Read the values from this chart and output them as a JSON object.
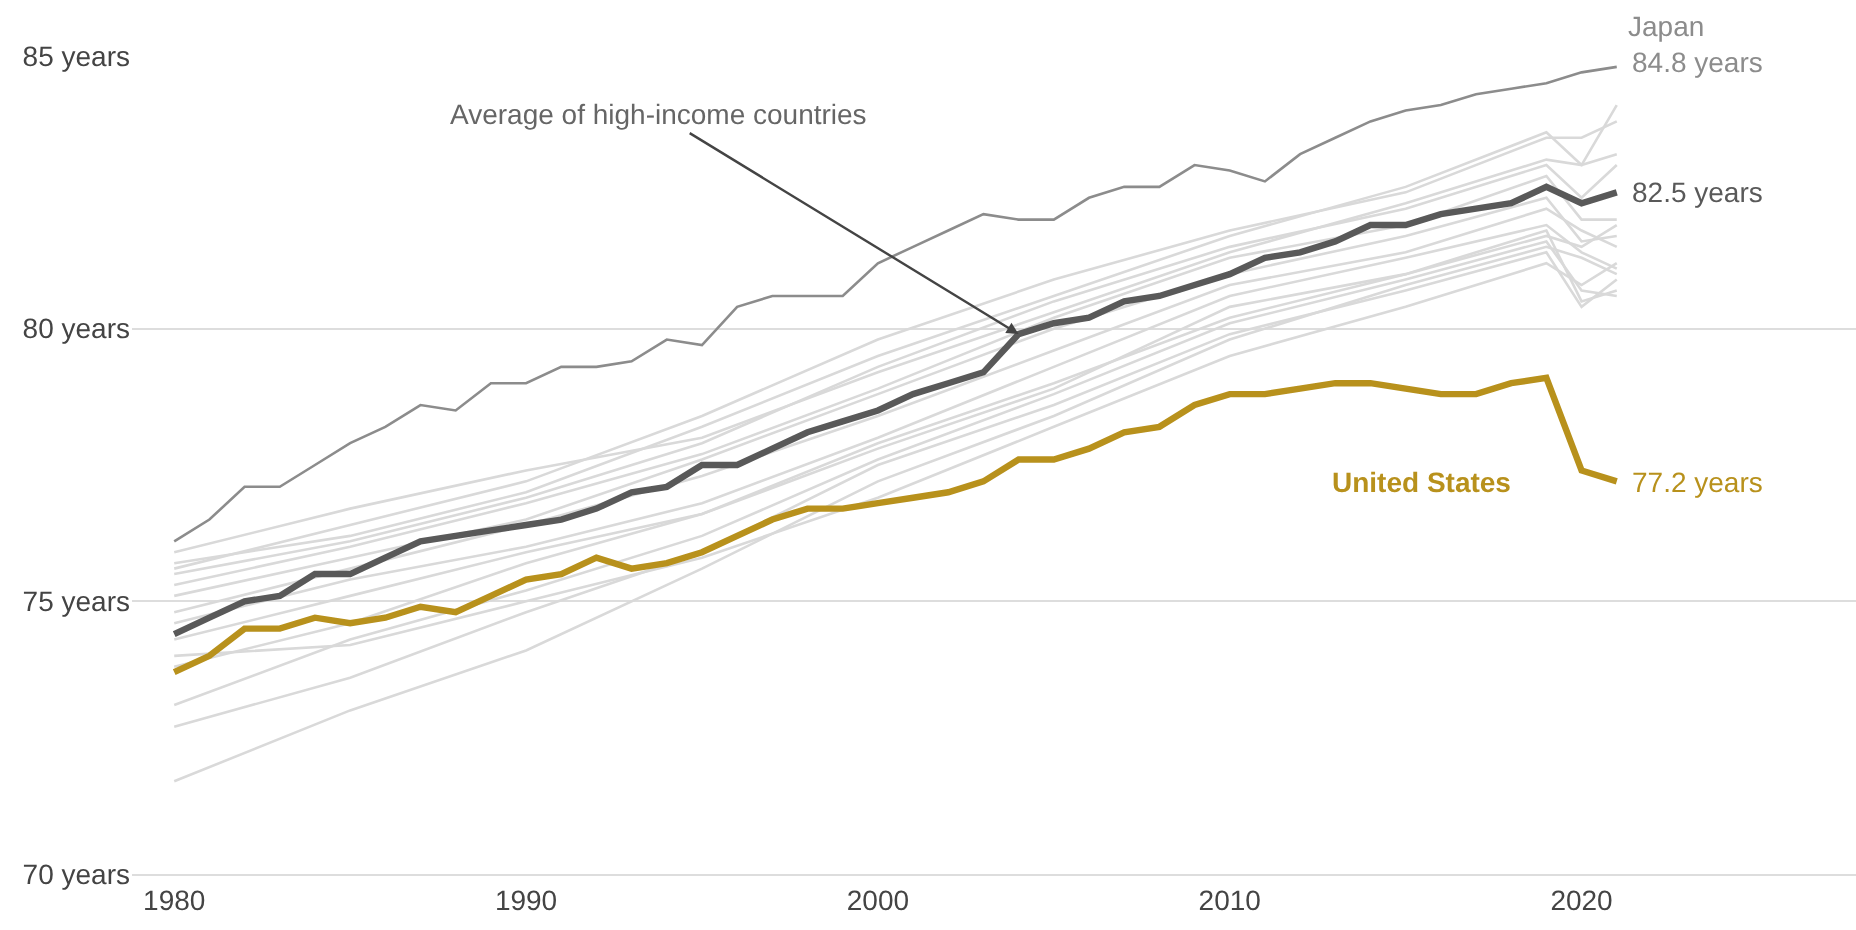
{
  "chart_data": {
    "type": "line",
    "annotations": [
      {
        "text": "Average of high-income countries",
        "x": 2004,
        "y": 79.9
      }
    ],
    "xlim": [
      1978.8,
      2027.8
    ],
    "xticks": [
      1980,
      1990,
      2000,
      2010,
      2020
    ],
    "ylim": [
      70,
      85
    ],
    "yticks": [
      {
        "value": 70,
        "label": "70 years"
      },
      {
        "value": 75,
        "label": "75 years"
      },
      {
        "value": 80,
        "label": "80 years"
      },
      {
        "value": 85,
        "label": "85 years"
      }
    ],
    "grid": "y",
    "marker": "none",
    "series": [
      {
        "color": "#d9d9d9",
        "x": [
          1980,
          1985,
          1990,
          1995,
          2000,
          2005,
          2010,
          2015,
          2019,
          2020,
          2021
        ],
        "values": [
          75.9,
          76.7,
          77.4,
          78.0,
          79.2,
          80.3,
          81.4,
          82.3,
          83.1,
          83.0,
          84.1
        ]
      },
      {
        "color": "#d9d9d9",
        "x": [
          1980,
          1985,
          1990,
          1995,
          2000,
          2005,
          2010,
          2015,
          2019,
          2020,
          2021
        ],
        "values": [
          75.7,
          76.2,
          77.0,
          78.2,
          79.5,
          80.6,
          81.7,
          82.6,
          83.6,
          83.0,
          83.2
        ]
      },
      {
        "color": "#d9d9d9",
        "x": [
          1980,
          1985,
          1990,
          1995,
          2000,
          2005,
          2010,
          2015,
          2019,
          2020,
          2021
        ],
        "values": [
          75.5,
          76.1,
          76.9,
          77.9,
          79.3,
          80.5,
          81.5,
          82.2,
          83.0,
          82.4,
          83.0
        ]
      },
      {
        "color": "#d9d9d9",
        "x": [
          1980,
          1985,
          1990,
          1995,
          2000,
          2005,
          2010,
          2015,
          2019,
          2020,
          2021
        ],
        "values": [
          75.3,
          76.0,
          76.8,
          77.7,
          78.9,
          80.2,
          81.3,
          81.9,
          82.8,
          82.0,
          82.0
        ]
      },
      {
        "color": "#d9d9d9",
        "x": [
          1980,
          1985,
          1990,
          1995,
          2000,
          2005,
          2010,
          2015,
          2019,
          2020,
          2021
        ],
        "values": [
          75.1,
          75.8,
          76.5,
          77.6,
          78.8,
          80.0,
          81.0,
          81.7,
          82.4,
          81.6,
          81.7
        ]
      },
      {
        "color": "#d9d9d9",
        "x": [
          1980,
          1985,
          1990,
          1995,
          2000,
          2005,
          2010,
          2015,
          2019,
          2020,
          2021
        ],
        "values": [
          74.8,
          75.6,
          76.4,
          77.3,
          78.4,
          79.6,
          80.8,
          81.4,
          82.2,
          81.8,
          81.5
        ]
      },
      {
        "color": "#d9d9d9",
        "x": [
          1980,
          1985,
          1990,
          1995,
          2000,
          2005,
          2010,
          2015,
          2019,
          2020,
          2021
        ],
        "values": [
          74.6,
          75.4,
          76.0,
          76.8,
          78.0,
          79.3,
          80.6,
          81.3,
          81.9,
          81.4,
          81.1
        ]
      },
      {
        "color": "#d9d9d9",
        "x": [
          1980,
          1985,
          1990,
          1995,
          2000,
          2005,
          2010,
          2015,
          2019,
          2020,
          2021
        ],
        "values": [
          74.3,
          75.1,
          75.9,
          76.6,
          77.8,
          78.9,
          80.4,
          81.0,
          81.8,
          80.5,
          80.7
        ]
      },
      {
        "color": "#d9d9d9",
        "x": [
          1980,
          1985,
          1990,
          1995,
          2000,
          2005,
          2010,
          2015,
          2019,
          2020,
          2021
        ],
        "values": [
          73.8,
          74.6,
          75.7,
          76.6,
          77.9,
          79.0,
          80.2,
          81.0,
          81.7,
          81.5,
          81.9
        ]
      },
      {
        "color": "#d9d9d9",
        "x": [
          1980,
          1985,
          1990,
          1995,
          2000,
          2005,
          2010,
          2015,
          2019,
          2020,
          2021
        ],
        "values": [
          73.1,
          74.3,
          75.2,
          76.2,
          77.6,
          78.8,
          80.1,
          80.9,
          81.6,
          80.7,
          80.6
        ]
      },
      {
        "color": "#d9d9d9",
        "x": [
          1980,
          1985,
          1990,
          1995,
          2000,
          2005,
          2010,
          2015,
          2019,
          2020,
          2021
        ],
        "values": [
          72.7,
          73.6,
          74.8,
          75.9,
          77.5,
          78.6,
          79.9,
          80.7,
          81.4,
          80.4,
          80.9
        ]
      },
      {
        "color": "#d9d9d9",
        "x": [
          1980,
          1985,
          1990,
          1995,
          2000,
          2005,
          2010,
          2015,
          2019,
          2020,
          2021
        ],
        "values": [
          71.7,
          73.0,
          74.1,
          75.6,
          77.2,
          78.4,
          79.8,
          80.8,
          81.5,
          81.3,
          81.0
        ]
      },
      {
        "color": "#d9d9d9",
        "x": [
          1980,
          1985,
          1990,
          1995,
          2000,
          2005,
          2010,
          2015,
          2019,
          2020,
          2021
        ],
        "values": [
          74.0,
          74.2,
          75.0,
          75.8,
          76.9,
          78.2,
          79.5,
          80.4,
          81.2,
          80.8,
          81.2
        ]
      },
      {
        "color": "#d9d9d9",
        "x": [
          1980,
          1985,
          1990,
          1995,
          2000,
          2005,
          2010,
          2015,
          2019,
          2020,
          2021
        ],
        "values": [
          75.6,
          76.4,
          77.2,
          78.4,
          79.8,
          80.9,
          81.8,
          82.5,
          83.5,
          83.5,
          83.8
        ]
      },
      {
        "name": "Japan",
        "color": "#8c8c8c",
        "x": [
          1980,
          1981,
          1982,
          1983,
          1984,
          1985,
          1986,
          1987,
          1988,
          1989,
          1990,
          1991,
          1992,
          1993,
          1994,
          1995,
          1996,
          1997,
          1998,
          1999,
          2000,
          2001,
          2002,
          2003,
          2004,
          2005,
          2006,
          2007,
          2008,
          2009,
          2010,
          2011,
          2012,
          2013,
          2014,
          2015,
          2016,
          2017,
          2018,
          2019,
          2020,
          2021
        ],
        "values": [
          76.1,
          76.5,
          77.1,
          77.1,
          77.5,
          77.9,
          78.2,
          78.6,
          78.5,
          79.0,
          79.0,
          79.3,
          79.3,
          79.4,
          79.8,
          79.7,
          80.4,
          80.6,
          80.6,
          80.6,
          81.2,
          81.5,
          81.8,
          82.1,
          82.0,
          82.0,
          82.4,
          82.6,
          82.6,
          83.0,
          82.9,
          82.7,
          83.2,
          83.5,
          83.8,
          84.0,
          84.1,
          84.3,
          84.4,
          84.5,
          84.7,
          84.8
        ],
        "value_labels": [
          null,
          null,
          null,
          null,
          null,
          null,
          null,
          null,
          null,
          null,
          null,
          null,
          null,
          null,
          null,
          null,
          null,
          null,
          null,
          null,
          null,
          null,
          null,
          null,
          null,
          null,
          null,
          null,
          null,
          null,
          null,
          null,
          null,
          null,
          null,
          null,
          null,
          null,
          null,
          null,
          null,
          "84.8 years"
        ]
      },
      {
        "color": "#595959",
        "x": [
          1980,
          1981,
          1982,
          1983,
          1984,
          1985,
          1986,
          1987,
          1988,
          1989,
          1990,
          1991,
          1992,
          1993,
          1994,
          1995,
          1996,
          1997,
          1998,
          1999,
          2000,
          2001,
          2002,
          2003,
          2004,
          2005,
          2006,
          2007,
          2008,
          2009,
          2010,
          2011,
          2012,
          2013,
          2014,
          2015,
          2016,
          2017,
          2018,
          2019,
          2020,
          2021
        ],
        "values": [
          74.4,
          74.7,
          75.0,
          75.1,
          75.5,
          75.5,
          75.8,
          76.1,
          76.2,
          76.3,
          76.4,
          76.5,
          76.7,
          77.0,
          77.1,
          77.5,
          77.5,
          77.8,
          78.1,
          78.3,
          78.5,
          78.8,
          79.0,
          79.2,
          79.9,
          80.1,
          80.2,
          80.5,
          80.6,
          80.8,
          81.0,
          81.3,
          81.4,
          81.6,
          81.9,
          81.9,
          82.1,
          82.2,
          82.3,
          82.6,
          82.3,
          82.5
        ],
        "value_labels": [
          null,
          null,
          null,
          null,
          null,
          null,
          null,
          null,
          null,
          null,
          null,
          null,
          null,
          null,
          null,
          null,
          null,
          null,
          null,
          null,
          null,
          null,
          null,
          null,
          null,
          null,
          null,
          null,
          null,
          null,
          null,
          null,
          null,
          null,
          null,
          null,
          null,
          null,
          null,
          null,
          null,
          "82.5 years"
        ]
      },
      {
        "name": "United States",
        "color": "#b8911c",
        "x": [
          1980,
          1981,
          1982,
          1983,
          1984,
          1985,
          1986,
          1987,
          1988,
          1989,
          1990,
          1991,
          1992,
          1993,
          1994,
          1995,
          1996,
          1997,
          1998,
          1999,
          2000,
          2001,
          2002,
          2003,
          2004,
          2005,
          2006,
          2007,
          2008,
          2009,
          2010,
          2011,
          2012,
          2013,
          2014,
          2015,
          2016,
          2017,
          2018,
          2019,
          2020,
          2021
        ],
        "values": [
          73.7,
          74.0,
          74.5,
          74.5,
          74.7,
          74.6,
          74.7,
          74.9,
          74.8,
          75.1,
          75.4,
          75.5,
          75.8,
          75.6,
          75.7,
          75.9,
          76.2,
          76.5,
          76.7,
          76.7,
          76.8,
          76.9,
          77.0,
          77.2,
          77.6,
          77.6,
          77.8,
          78.1,
          78.2,
          78.6,
          78.8,
          78.8,
          78.9,
          79.0,
          79.0,
          78.9,
          78.8,
          78.8,
          79.0,
          79.1,
          77.4,
          77.2
        ],
        "value_labels": [
          null,
          null,
          null,
          null,
          null,
          null,
          null,
          null,
          null,
          null,
          null,
          null,
          null,
          null,
          null,
          null,
          null,
          null,
          null,
          null,
          null,
          null,
          null,
          null,
          null,
          null,
          null,
          null,
          null,
          null,
          null,
          null,
          null,
          null,
          null,
          null,
          null,
          null,
          null,
          null,
          null,
          "77.2 years"
        ]
      }
    ]
  }
}
